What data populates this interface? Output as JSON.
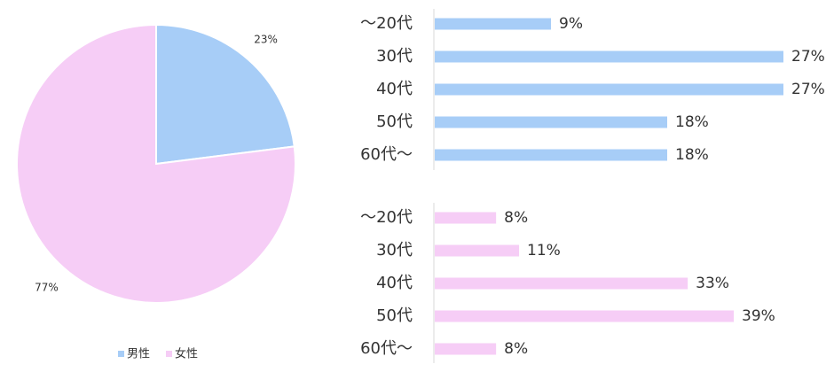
{
  "chart_data": [
    {
      "type": "pie",
      "categories": [
        "男性",
        "女性"
      ],
      "values": [
        23,
        77
      ],
      "value_labels": [
        "23%",
        "77%"
      ],
      "colors": [
        "#a7cdf7",
        "#f6cdf6"
      ],
      "legend": "bottom"
    },
    {
      "type": "bar",
      "orientation": "horizontal",
      "categories": [
        "～20代",
        "30代",
        "40代",
        "50代",
        "60代～"
      ],
      "values": [
        9,
        27,
        27,
        18,
        18
      ],
      "value_labels": [
        "9%",
        "27%",
        "27%",
        "18%",
        "18%"
      ],
      "color": "#a7cdf7"
    },
    {
      "type": "bar",
      "orientation": "horizontal",
      "categories": [
        "～20代",
        "30代",
        "40代",
        "50代",
        "60代～"
      ],
      "values": [
        8,
        11,
        33,
        39,
        8
      ],
      "value_labels": [
        "8%",
        "11%",
        "33%",
        "39%",
        "8%"
      ],
      "color": "#f6cdf6"
    }
  ]
}
